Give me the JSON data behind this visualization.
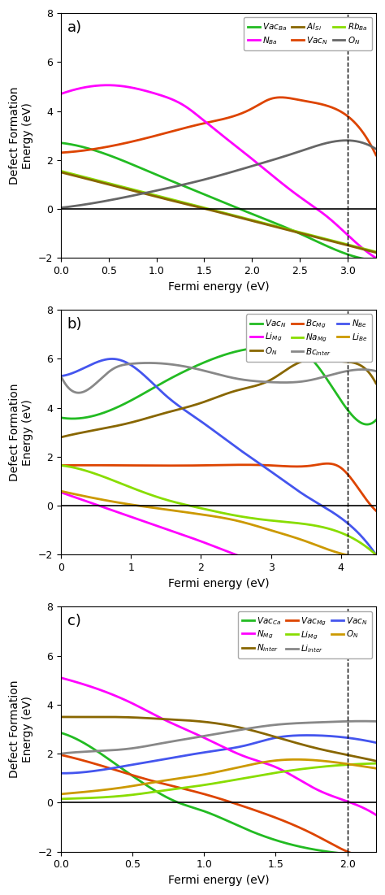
{
  "panel_a": {
    "title": "a)",
    "xlim": [
      0,
      3.3
    ],
    "ylim": [
      -2,
      8
    ],
    "xticks": [
      0.0,
      0.5,
      1.0,
      1.5,
      2.0,
      2.5,
      3.0
    ],
    "yticks": [
      -2,
      0,
      2,
      4,
      6,
      8
    ],
    "vline": 3.0,
    "series": [
      {
        "label": "Vac$_{Ba}$",
        "color": "#22bb22",
        "points": [
          [
            0.0,
            2.7
          ],
          [
            0.5,
            2.2
          ],
          [
            1.0,
            1.4
          ],
          [
            1.5,
            0.6
          ],
          [
            2.0,
            -0.2
          ],
          [
            2.5,
            -1.0
          ],
          [
            3.0,
            -1.85
          ],
          [
            3.3,
            -2.1
          ]
        ]
      },
      {
        "label": "Vac$_{N}$",
        "color": "#dd4400",
        "points": [
          [
            0.0,
            2.3
          ],
          [
            0.5,
            2.55
          ],
          [
            1.0,
            3.0
          ],
          [
            1.5,
            3.5
          ],
          [
            2.0,
            4.1
          ],
          [
            2.2,
            4.5
          ],
          [
            2.5,
            4.45
          ],
          [
            2.8,
            4.2
          ],
          [
            3.0,
            3.8
          ],
          [
            3.3,
            2.2
          ]
        ]
      },
      {
        "label": "N$_{Ba}$",
        "color": "#ff00ff",
        "points": [
          [
            0.0,
            4.7
          ],
          [
            0.3,
            5.0
          ],
          [
            0.55,
            5.05
          ],
          [
            1.0,
            4.7
          ],
          [
            1.3,
            4.2
          ],
          [
            1.5,
            3.6
          ],
          [
            2.0,
            2.05
          ],
          [
            2.5,
            0.5
          ],
          [
            2.8,
            -0.35
          ],
          [
            3.0,
            -1.05
          ],
          [
            3.3,
            -2.0
          ]
        ]
      },
      {
        "label": "Rb$_{Ba}$",
        "color": "#88dd00",
        "points": [
          [
            0.0,
            1.55
          ],
          [
            0.5,
            1.05
          ],
          [
            1.0,
            0.55
          ],
          [
            1.5,
            0.05
          ],
          [
            2.0,
            -0.45
          ],
          [
            2.5,
            -0.95
          ],
          [
            3.0,
            -1.45
          ],
          [
            3.3,
            -1.75
          ]
        ]
      },
      {
        "label": "Al$_{Si}$",
        "color": "#886600",
        "points": [
          [
            0.0,
            1.5
          ],
          [
            0.5,
            1.0
          ],
          [
            1.0,
            0.5
          ],
          [
            1.5,
            0.02
          ],
          [
            2.0,
            -0.48
          ],
          [
            2.5,
            -0.98
          ],
          [
            3.0,
            -1.48
          ],
          [
            3.3,
            -1.78
          ]
        ]
      },
      {
        "label": "O$_{N}$",
        "color": "#666666",
        "points": [
          [
            0.0,
            0.05
          ],
          [
            0.5,
            0.35
          ],
          [
            1.0,
            0.75
          ],
          [
            1.5,
            1.2
          ],
          [
            2.0,
            1.75
          ],
          [
            2.5,
            2.35
          ],
          [
            3.0,
            2.8
          ],
          [
            3.3,
            2.45
          ]
        ]
      }
    ]
  },
  "panel_b": {
    "title": "b)",
    "xlim": [
      0,
      4.5
    ],
    "ylim": [
      -2,
      8
    ],
    "xticks": [
      0,
      1,
      2,
      3,
      4
    ],
    "yticks": [
      -2,
      0,
      2,
      4,
      6,
      8
    ],
    "vline": 4.1,
    "series": [
      {
        "label": "Vac$_{N}$",
        "color": "#22bb22",
        "points": [
          [
            0.0,
            3.6
          ],
          [
            0.5,
            3.7
          ],
          [
            1.0,
            4.3
          ],
          [
            1.5,
            5.1
          ],
          [
            2.0,
            5.8
          ],
          [
            2.5,
            6.3
          ],
          [
            3.0,
            6.5
          ],
          [
            3.3,
            6.45
          ],
          [
            3.5,
            6.2
          ],
          [
            4.0,
            4.3
          ],
          [
            4.1,
            3.9
          ],
          [
            4.5,
            3.5
          ]
        ]
      },
      {
        "label": "Bc$_{Mg}$",
        "color": "#dd4400",
        "points": [
          [
            0.0,
            1.65
          ],
          [
            1.0,
            1.65
          ],
          [
            2.0,
            1.65
          ],
          [
            3.0,
            1.65
          ],
          [
            3.6,
            1.65
          ],
          [
            4.0,
            1.55
          ],
          [
            4.15,
            1.1
          ],
          [
            4.5,
            -0.2
          ]
        ]
      },
      {
        "label": "N$_{Be}$",
        "color": "#4455ee",
        "points": [
          [
            0.0,
            5.3
          ],
          [
            0.5,
            5.85
          ],
          [
            0.75,
            6.0
          ],
          [
            1.0,
            5.75
          ],
          [
            1.5,
            4.5
          ],
          [
            2.0,
            3.45
          ],
          [
            2.5,
            2.4
          ],
          [
            3.0,
            1.4
          ],
          [
            3.5,
            0.4
          ],
          [
            4.0,
            -0.5
          ],
          [
            4.5,
            -2.0
          ]
        ]
      },
      {
        "label": "Li$_{Mg}$",
        "color": "#ff00ff",
        "points": [
          [
            0.0,
            0.55
          ],
          [
            0.5,
            0.05
          ],
          [
            1.0,
            -0.45
          ],
          [
            1.5,
            -0.95
          ],
          [
            2.0,
            -1.45
          ],
          [
            2.5,
            -2.0
          ],
          [
            4.5,
            -2.0
          ]
        ]
      },
      {
        "label": "Na$_{Mg}$",
        "color": "#88dd00",
        "points": [
          [
            0.0,
            1.65
          ],
          [
            0.5,
            1.3
          ],
          [
            1.0,
            0.75
          ],
          [
            1.5,
            0.25
          ],
          [
            2.0,
            -0.1
          ],
          [
            2.5,
            -0.4
          ],
          [
            3.0,
            -0.6
          ],
          [
            3.5,
            -0.75
          ],
          [
            4.0,
            -1.1
          ],
          [
            4.5,
            -2.0
          ]
        ]
      },
      {
        "label": "Li$_{Be}$",
        "color": "#cc9900",
        "points": [
          [
            0.0,
            0.6
          ],
          [
            0.5,
            0.3
          ],
          [
            1.0,
            0.05
          ],
          [
            1.5,
            -0.15
          ],
          [
            2.0,
            -0.35
          ],
          [
            2.5,
            -0.6
          ],
          [
            3.0,
            -1.0
          ],
          [
            3.5,
            -1.45
          ],
          [
            4.0,
            -1.95
          ],
          [
            4.5,
            -2.0
          ]
        ]
      },
      {
        "label": "O$_{N}$",
        "color": "#886600",
        "points": [
          [
            0.0,
            2.8
          ],
          [
            0.5,
            3.1
          ],
          [
            1.0,
            3.4
          ],
          [
            1.5,
            3.8
          ],
          [
            2.0,
            4.2
          ],
          [
            2.5,
            4.7
          ],
          [
            3.0,
            5.15
          ],
          [
            3.3,
            5.7
          ],
          [
            3.5,
            5.95
          ],
          [
            4.0,
            5.9
          ],
          [
            4.3,
            5.7
          ],
          [
            4.5,
            5.0
          ]
        ]
      },
      {
        "label": "Bc$_{inter}$",
        "color": "#888888",
        "points": [
          [
            0.0,
            5.3
          ],
          [
            0.5,
            5.0
          ],
          [
            0.75,
            5.6
          ],
          [
            1.0,
            5.8
          ],
          [
            1.5,
            5.8
          ],
          [
            2.0,
            5.55
          ],
          [
            2.5,
            5.2
          ],
          [
            3.0,
            5.05
          ],
          [
            3.5,
            5.1
          ],
          [
            4.0,
            5.45
          ],
          [
            4.5,
            5.5
          ]
        ]
      }
    ]
  },
  "panel_c": {
    "title": "c)",
    "xlim": [
      0,
      2.2
    ],
    "ylim": [
      -2,
      8
    ],
    "xticks": [
      0.0,
      0.5,
      1.0,
      1.5,
      2.0
    ],
    "yticks": [
      -2,
      0,
      2,
      4,
      6,
      8
    ],
    "vline": 2.0,
    "series": [
      {
        "label": "Vac$_{Ca}$",
        "color": "#22bb22",
        "points": [
          [
            0.0,
            2.85
          ],
          [
            0.2,
            2.3
          ],
          [
            0.4,
            1.5
          ],
          [
            0.6,
            0.7
          ],
          [
            0.8,
            0.05
          ],
          [
            1.0,
            -0.35
          ],
          [
            1.3,
            -1.1
          ],
          [
            1.6,
            -1.7
          ],
          [
            2.0,
            -2.1
          ],
          [
            2.2,
            -2.2
          ]
        ]
      },
      {
        "label": "Vac$_{Mg}$",
        "color": "#dd4400",
        "points": [
          [
            0.0,
            1.95
          ],
          [
            0.2,
            1.65
          ],
          [
            0.4,
            1.3
          ],
          [
            0.6,
            0.95
          ],
          [
            0.8,
            0.65
          ],
          [
            1.0,
            0.35
          ],
          [
            1.3,
            -0.2
          ],
          [
            1.6,
            -0.85
          ],
          [
            1.8,
            -1.4
          ],
          [
            2.0,
            -2.0
          ],
          [
            2.2,
            -2.2
          ]
        ]
      },
      {
        "label": "Vac$_{N}$",
        "color": "#4455ee",
        "points": [
          [
            0.0,
            1.2
          ],
          [
            0.3,
            1.35
          ],
          [
            0.5,
            1.55
          ],
          [
            0.7,
            1.75
          ],
          [
            1.0,
            2.05
          ],
          [
            1.3,
            2.35
          ],
          [
            1.5,
            2.65
          ],
          [
            1.7,
            2.75
          ],
          [
            2.0,
            2.65
          ],
          [
            2.2,
            2.45
          ]
        ]
      },
      {
        "label": "N$_{Mg}$",
        "color": "#ff00ff",
        "points": [
          [
            0.0,
            5.1
          ],
          [
            0.3,
            4.55
          ],
          [
            0.5,
            4.05
          ],
          [
            0.7,
            3.45
          ],
          [
            1.0,
            2.65
          ],
          [
            1.3,
            1.85
          ],
          [
            1.5,
            1.45
          ],
          [
            1.8,
            0.5
          ],
          [
            2.0,
            0.05
          ],
          [
            2.2,
            -0.5
          ]
        ]
      },
      {
        "label": "Li$_{Mg}$",
        "color": "#88dd00",
        "points": [
          [
            0.0,
            0.15
          ],
          [
            0.3,
            0.22
          ],
          [
            0.5,
            0.32
          ],
          [
            0.7,
            0.48
          ],
          [
            1.0,
            0.72
          ],
          [
            1.3,
            1.02
          ],
          [
            1.5,
            1.22
          ],
          [
            2.0,
            1.55
          ],
          [
            2.2,
            1.6
          ]
        ]
      },
      {
        "label": "O$_{N}$",
        "color": "#cc9900",
        "points": [
          [
            0.0,
            0.35
          ],
          [
            0.3,
            0.52
          ],
          [
            0.5,
            0.68
          ],
          [
            0.7,
            0.88
          ],
          [
            1.0,
            1.15
          ],
          [
            1.3,
            1.52
          ],
          [
            1.5,
            1.72
          ],
          [
            1.8,
            1.72
          ],
          [
            2.0,
            1.58
          ],
          [
            2.2,
            1.4
          ]
        ]
      },
      {
        "label": "N$_{inter}$",
        "color": "#886600",
        "points": [
          [
            0.0,
            3.5
          ],
          [
            0.3,
            3.5
          ],
          [
            0.5,
            3.48
          ],
          [
            0.7,
            3.42
          ],
          [
            1.0,
            3.3
          ],
          [
            1.3,
            3.0
          ],
          [
            1.5,
            2.68
          ],
          [
            1.8,
            2.2
          ],
          [
            2.0,
            1.95
          ],
          [
            2.2,
            1.7
          ]
        ]
      },
      {
        "label": "Li$_{inter}$",
        "color": "#888888",
        "points": [
          [
            0.0,
            2.0
          ],
          [
            0.3,
            2.12
          ],
          [
            0.5,
            2.22
          ],
          [
            0.7,
            2.42
          ],
          [
            1.0,
            2.72
          ],
          [
            1.3,
            3.02
          ],
          [
            1.5,
            3.18
          ],
          [
            1.8,
            3.28
          ],
          [
            2.0,
            3.32
          ],
          [
            2.2,
            3.32
          ]
        ]
      }
    ]
  }
}
